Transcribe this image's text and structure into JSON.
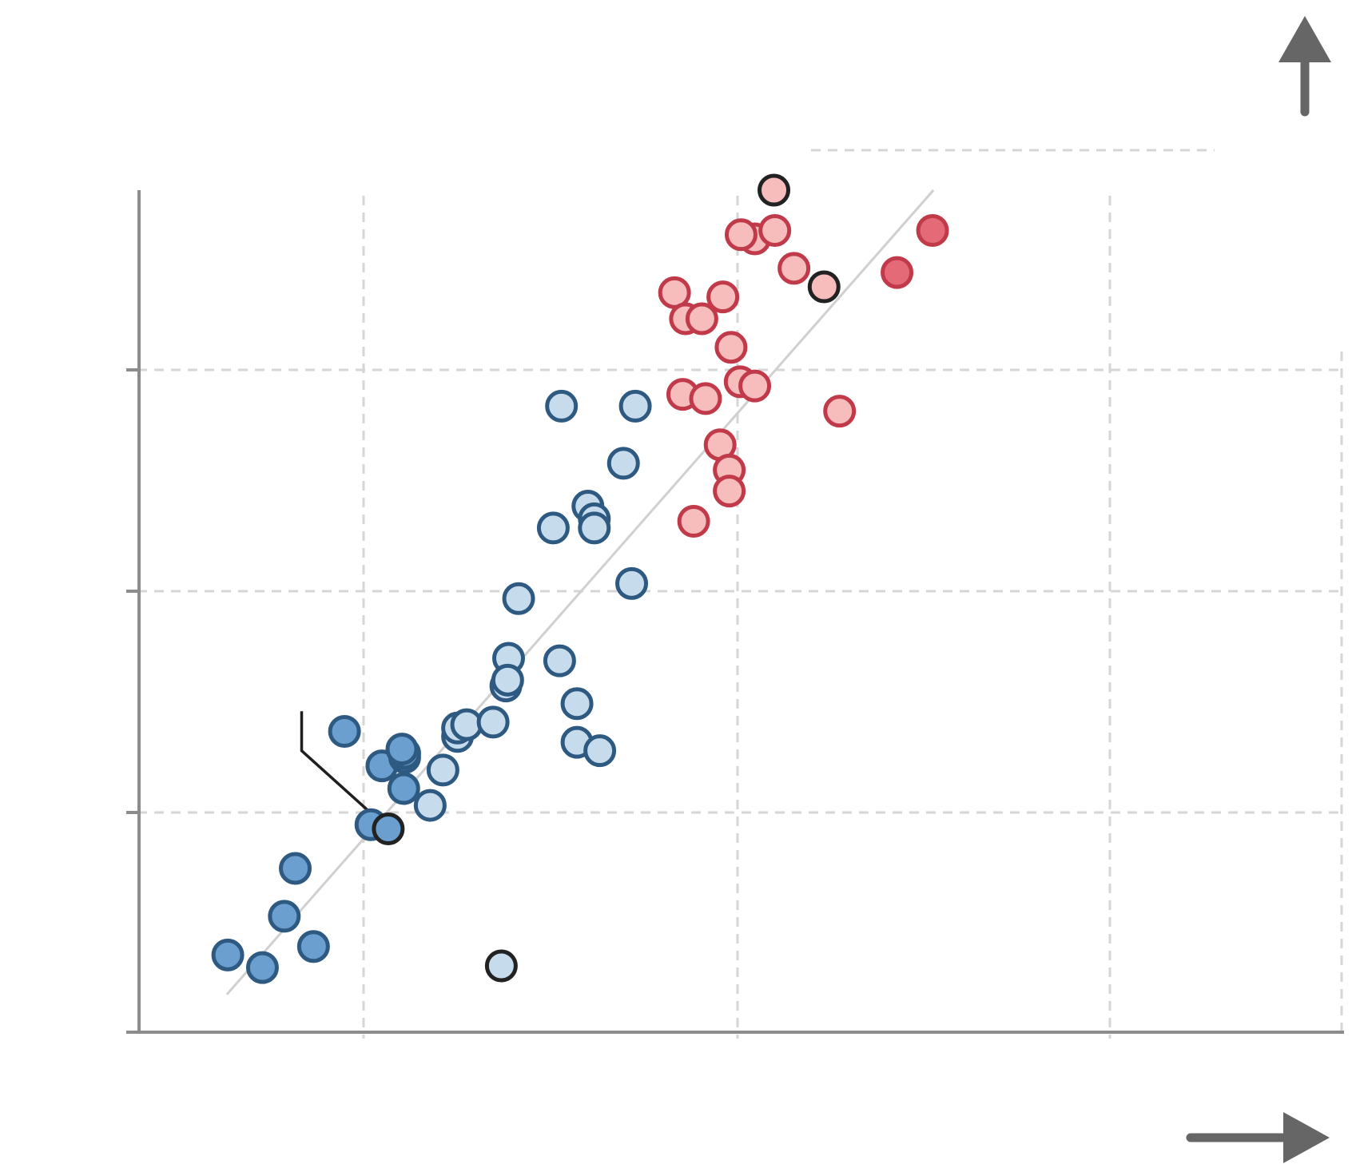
{
  "chart_data": {
    "type": "scatter",
    "title": "",
    "xlabel": "",
    "ylabel": "",
    "xlim": [
      0,
      1
    ],
    "ylim": [
      0,
      1
    ],
    "grid": true,
    "colors": {
      "dark_blue_fill": "#6a9fd0",
      "light_blue_fill": "#c6dcec",
      "blue_edge": "#2e5a82",
      "light_red_fill": "#f7bcbc",
      "dark_red_fill": "#e56a78",
      "red_edge": "#c13a4a",
      "highlight_edge": "#222222",
      "trend_line": "#d0d0d0",
      "grid": "#d6d6d6",
      "axis": "#8c8c8c",
      "arrow": "#666666"
    },
    "trend_line": {
      "x": [
        0.035,
        0.81
      ],
      "y": [
        0.043,
        1.0
      ]
    },
    "series": [
      {
        "group": "dark-blue",
        "points": [
          {
            "x": 0.036,
            "y": 0.09
          },
          {
            "x": 0.074,
            "y": 0.075
          },
          {
            "x": 0.098,
            "y": 0.136
          },
          {
            "x": 0.13,
            "y": 0.1
          },
          {
            "x": 0.11,
            "y": 0.193
          },
          {
            "x": 0.164,
            "y": 0.356
          },
          {
            "x": 0.205,
            "y": 0.315
          },
          {
            "x": 0.23,
            "y": 0.325
          },
          {
            "x": 0.23,
            "y": 0.33
          },
          {
            "x": 0.227,
            "y": 0.335
          },
          {
            "x": 0.229,
            "y": 0.288
          },
          {
            "x": 0.193,
            "y": 0.245
          },
          {
            "x": 0.212,
            "y": 0.24,
            "highlight": true
          }
        ]
      },
      {
        "group": "light-blue",
        "points": [
          {
            "x": 0.258,
            "y": 0.268
          },
          {
            "x": 0.272,
            "y": 0.31
          },
          {
            "x": 0.288,
            "y": 0.35
          },
          {
            "x": 0.288,
            "y": 0.36
          },
          {
            "x": 0.298,
            "y": 0.364
          },
          {
            "x": 0.327,
            "y": 0.367
          },
          {
            "x": 0.341,
            "y": 0.41
          },
          {
            "x": 0.344,
            "y": 0.443
          },
          {
            "x": 0.343,
            "y": 0.417
          },
          {
            "x": 0.355,
            "y": 0.514
          },
          {
            "x": 0.4,
            "y": 0.44
          },
          {
            "x": 0.419,
            "y": 0.389
          },
          {
            "x": 0.419,
            "y": 0.343
          },
          {
            "x": 0.444,
            "y": 0.333
          },
          {
            "x": 0.393,
            "y": 0.598
          },
          {
            "x": 0.431,
            "y": 0.624
          },
          {
            "x": 0.438,
            "y": 0.609
          },
          {
            "x": 0.438,
            "y": 0.598
          },
          {
            "x": 0.47,
            "y": 0.675
          },
          {
            "x": 0.402,
            "y": 0.743
          },
          {
            "x": 0.483,
            "y": 0.743
          },
          {
            "x": 0.479,
            "y": 0.532
          },
          {
            "x": 0.336,
            "y": 0.077,
            "highlight": true
          }
        ]
      },
      {
        "group": "light-red",
        "points": [
          {
            "x": 0.526,
            "y": 0.878
          },
          {
            "x": 0.538,
            "y": 0.847
          },
          {
            "x": 0.556,
            "y": 0.847
          },
          {
            "x": 0.535,
            "y": 0.757
          },
          {
            "x": 0.56,
            "y": 0.752
          },
          {
            "x": 0.579,
            "y": 0.873
          },
          {
            "x": 0.588,
            "y": 0.813
          },
          {
            "x": 0.598,
            "y": 0.772
          },
          {
            "x": 0.614,
            "y": 0.767
          },
          {
            "x": 0.576,
            "y": 0.697
          },
          {
            "x": 0.586,
            "y": 0.667
          },
          {
            "x": 0.586,
            "y": 0.642
          },
          {
            "x": 0.547,
            "y": 0.606
          },
          {
            "x": 0.614,
            "y": 0.942
          },
          {
            "x": 0.599,
            "y": 0.947
          },
          {
            "x": 0.636,
            "y": 0.952
          },
          {
            "x": 0.657,
            "y": 0.907
          },
          {
            "x": 0.707,
            "y": 0.737
          },
          {
            "x": 0.69,
            "y": 0.885,
            "highlight": true
          },
          {
            "x": 0.635,
            "y": 1.0,
            "highlight": true
          }
        ]
      },
      {
        "group": "dark-red",
        "points": [
          {
            "x": 0.77,
            "y": 0.902
          },
          {
            "x": 0.809,
            "y": 0.952
          }
        ]
      }
    ],
    "annotation_callout": {
      "from": {
        "x": 0.117,
        "y": 0.38
      },
      "elbow": {
        "x": 0.117,
        "y": 0.333
      },
      "to": {
        "x": 0.202,
        "y": 0.25
      }
    }
  }
}
